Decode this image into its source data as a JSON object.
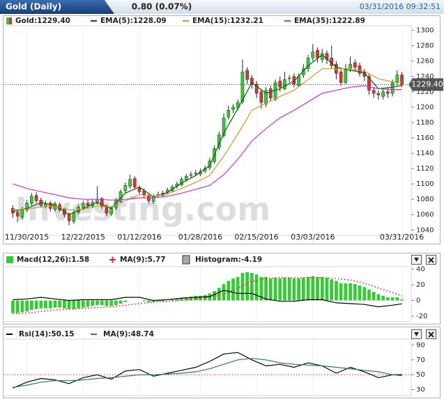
{
  "header": {
    "title": "Gold (Daily)",
    "change": "0.80 (0.07%)",
    "timestamp": "03/31/2016 09:32:51"
  },
  "chart_data": [
    {
      "type": "candlestick",
      "name": "Gold:1229.40",
      "watermark": "Investing.com",
      "grid": true,
      "up_color": "#33cc33",
      "down_color": "#dd3333",
      "xlim": [
        -2,
        85
      ],
      "ylim": [
        1033,
        1306
      ],
      "xticks": [
        {
          "value": 3,
          "label": "11/30/2015"
        },
        {
          "value": 15,
          "label": "12/22/2015"
        },
        {
          "value": 27,
          "label": "01/12/2016"
        },
        {
          "value": 40,
          "label": "01/28/2016"
        },
        {
          "value": 52,
          "label": "02/15/2016"
        },
        {
          "value": 64,
          "label": "03/03/2016"
        },
        {
          "value": 83,
          "label": "03/31/2016"
        }
      ],
      "yticks": [
        1040,
        1060,
        1080,
        1100,
        1120,
        1140,
        1160,
        1180,
        1200,
        1220,
        1240,
        1260,
        1280,
        1300
      ],
      "last_price": {
        "value": 1229.4,
        "label": "1229.40"
      },
      "open": [
        1068,
        1063,
        1057,
        1066,
        1075,
        1085,
        1079,
        1071,
        1075,
        1067,
        1073,
        1067,
        1061,
        1051,
        1063,
        1069,
        1075,
        1071,
        1075,
        1081,
        1071,
        1061,
        1069,
        1077,
        1091,
        1097,
        1107,
        1095,
        1091,
        1085,
        1077,
        1085,
        1085,
        1089,
        1091,
        1097,
        1099,
        1105,
        1111,
        1113,
        1113,
        1117,
        1121,
        1129,
        1147,
        1163,
        1187,
        1197,
        1199,
        1207,
        1248,
        1238,
        1230,
        1220,
        1204,
        1224,
        1210,
        1234,
        1224,
        1238,
        1240,
        1228,
        1242,
        1250,
        1264,
        1274,
        1262,
        1270,
        1264,
        1256,
        1246,
        1232,
        1250,
        1258,
        1254,
        1246,
        1240,
        1222,
        1218,
        1214,
        1220,
        1218,
        1232,
        1242
      ],
      "high": [
        1072,
        1066,
        1070,
        1079,
        1088,
        1089,
        1082,
        1078,
        1078,
        1077,
        1076,
        1069,
        1063,
        1065,
        1073,
        1078,
        1079,
        1080,
        1097,
        1083,
        1073,
        1071,
        1081,
        1093,
        1102,
        1112,
        1110,
        1098,
        1094,
        1088,
        1087,
        1090,
        1091,
        1095,
        1099,
        1103,
        1109,
        1113,
        1116,
        1118,
        1120,
        1124,
        1134,
        1150,
        1168,
        1192,
        1202,
        1204,
        1210,
        1262,
        1252,
        1242,
        1234,
        1224,
        1226,
        1228,
        1236,
        1240,
        1246,
        1242,
        1244,
        1244,
        1256,
        1268,
        1282,
        1278,
        1276,
        1274,
        1280,
        1260,
        1250,
        1256,
        1266,
        1262,
        1258,
        1250,
        1244,
        1226,
        1222,
        1224,
        1226,
        1236,
        1248,
        1246
      ],
      "low": [
        1056,
        1050,
        1054,
        1063,
        1072,
        1075,
        1069,
        1068,
        1064,
        1064,
        1063,
        1056,
        1046,
        1048,
        1060,
        1066,
        1069,
        1068,
        1073,
        1067,
        1058,
        1058,
        1066,
        1075,
        1088,
        1094,
        1093,
        1086,
        1082,
        1074,
        1074,
        1082,
        1083,
        1086,
        1089,
        1094,
        1097,
        1103,
        1108,
        1110,
        1110,
        1114,
        1118,
        1126,
        1144,
        1160,
        1184,
        1192,
        1196,
        1204,
        1230,
        1224,
        1212,
        1198,
        1200,
        1208,
        1208,
        1220,
        1222,
        1232,
        1226,
        1226,
        1238,
        1246,
        1260,
        1258,
        1258,
        1256,
        1250,
        1236,
        1228,
        1230,
        1246,
        1246,
        1240,
        1234,
        1216,
        1212,
        1210,
        1210,
        1212,
        1214,
        1228,
        1226
      ],
      "close": [
        1062,
        1058,
        1066,
        1075,
        1084,
        1078,
        1072,
        1074,
        1068,
        1074,
        1066,
        1060,
        1052,
        1062,
        1070,
        1074,
        1072,
        1076,
        1080,
        1070,
        1062,
        1068,
        1078,
        1090,
        1098,
        1106,
        1096,
        1090,
        1086,
        1078,
        1084,
        1086,
        1088,
        1092,
        1096,
        1100,
        1106,
        1110,
        1112,
        1114,
        1116,
        1120,
        1130,
        1146,
        1164,
        1186,
        1196,
        1200,
        1206,
        1246,
        1236,
        1230,
        1218,
        1206,
        1222,
        1212,
        1232,
        1226,
        1236,
        1238,
        1230,
        1240,
        1250,
        1264,
        1272,
        1264,
        1270,
        1262,
        1254,
        1244,
        1232,
        1250,
        1256,
        1252,
        1244,
        1240,
        1222,
        1218,
        1216,
        1220,
        1218,
        1232,
        1242,
        1229.4
      ],
      "series": [
        {
          "name": "EMA(5):1228.09",
          "color": "#006600",
          "x": [
            0,
            3,
            6,
            9,
            12,
            15,
            18,
            21,
            24,
            27,
            30,
            33,
            36,
            39,
            42,
            45,
            48,
            51,
            54,
            57,
            60,
            63,
            66,
            69,
            72,
            75,
            78,
            81,
            83
          ],
          "values": [
            1064,
            1068,
            1076,
            1072,
            1060,
            1068,
            1076,
            1068,
            1088,
            1096,
            1083,
            1089,
            1101,
            1111,
            1124,
            1166,
            1198,
            1232,
            1218,
            1224,
            1234,
            1254,
            1268,
            1252,
            1248,
            1245,
            1224,
            1226,
            1228.09
          ]
        },
        {
          "name": "EMA(15):1232.21",
          "color": "#cc9933",
          "x": [
            0,
            3,
            6,
            9,
            12,
            15,
            18,
            21,
            24,
            27,
            30,
            33,
            36,
            39,
            42,
            45,
            48,
            51,
            54,
            57,
            60,
            63,
            66,
            69,
            72,
            75,
            78,
            81,
            83
          ],
          "values": [
            1066,
            1067,
            1070,
            1071,
            1066,
            1067,
            1071,
            1070,
            1078,
            1086,
            1084,
            1087,
            1094,
            1102,
            1111,
            1136,
            1165,
            1196,
            1205,
            1214,
            1222,
            1236,
            1250,
            1250,
            1250,
            1247,
            1237,
            1233,
            1232.21
          ]
        },
        {
          "name": "EMA(35):1222.89",
          "color": "#cc33cc",
          "x": [
            0,
            3,
            6,
            9,
            12,
            15,
            18,
            21,
            24,
            27,
            30,
            33,
            36,
            39,
            42,
            45,
            48,
            51,
            54,
            57,
            60,
            63,
            66,
            69,
            72,
            75,
            78,
            81,
            83
          ],
          "values": [
            1100,
            1094,
            1090,
            1086,
            1082,
            1080,
            1080,
            1079,
            1080,
            1082,
            1082,
            1084,
            1088,
            1093,
            1098,
            1112,
            1132,
            1156,
            1172,
            1186,
            1196,
            1207,
            1218,
            1222,
            1226,
            1228,
            1224,
            1223,
            1222.89
          ]
        }
      ]
    },
    {
      "type": "macd",
      "xlim": [
        -2,
        85
      ],
      "ylim": [
        -27,
        43
      ],
      "yticks": [
        40,
        20,
        0,
        -20
      ],
      "bars": {
        "name": "Macd(12,26):1.58",
        "color": "#33cc33",
        "values": [
          -16,
          -16,
          -15,
          -14,
          -12,
          -11,
          -10,
          -10,
          -10,
          -9,
          -9,
          -10,
          -11,
          -11,
          -10,
          -9,
          -8,
          -7,
          -6,
          -6,
          -7,
          -7,
          -6,
          -4,
          -2,
          0,
          0,
          0,
          -1,
          -2,
          -2,
          -1,
          -1,
          0,
          1,
          2,
          3,
          4,
          5,
          6,
          6,
          7,
          9,
          12,
          16,
          21,
          25,
          28,
          30,
          35,
          36,
          35,
          33,
          30,
          30,
          28,
          29,
          28,
          29,
          29,
          28,
          28,
          29,
          30,
          31,
          30,
          30,
          29,
          27,
          25,
          22,
          22,
          22,
          21,
          19,
          17,
          14,
          11,
          8,
          6,
          4,
          4,
          4,
          1.58
        ]
      },
      "series": [
        {
          "name": "MA(9):5.77",
          "color": "#ee2222",
          "x": [
            0,
            3,
            6,
            9,
            12,
            15,
            18,
            21,
            24,
            27,
            30,
            33,
            36,
            39,
            42,
            45,
            48,
            51,
            54,
            57,
            60,
            63,
            66,
            69,
            72,
            75,
            78,
            81,
            83
          ],
          "values": [
            -17,
            -16,
            -14,
            -12,
            -11,
            -10,
            -9,
            -8,
            -6,
            -4,
            -2,
            -1,
            0,
            2,
            4,
            8,
            16,
            24,
            28,
            29,
            29,
            29,
            29,
            28,
            26,
            22,
            16,
            10,
            5.77
          ]
        },
        {
          "name": "Histogram:-4.19",
          "color": "#000000",
          "x": [
            0,
            3,
            6,
            9,
            12,
            15,
            18,
            21,
            24,
            27,
            30,
            33,
            36,
            39,
            42,
            45,
            48,
            51,
            54,
            57,
            60,
            63,
            66,
            69,
            72,
            75,
            78,
            81,
            83
          ],
          "values": [
            1,
            2,
            4,
            2,
            0,
            1,
            1,
            1,
            4,
            4,
            0,
            1,
            3,
            4,
            5,
            13,
            9,
            9,
            2,
            -1,
            -1,
            1,
            1,
            -3,
            -4,
            -5,
            -8,
            -6,
            -4.19
          ]
        }
      ]
    },
    {
      "type": "rsi",
      "xlim": [
        -2,
        85
      ],
      "ylim": [
        22,
        98
      ],
      "yticks": [
        90,
        70,
        50,
        30
      ],
      "reference": 50,
      "reference_color": "#ee2222",
      "series": [
        {
          "name": "Rsi(14):50.15",
          "color": "#000000",
          "x": [
            0,
            3,
            6,
            9,
            12,
            15,
            18,
            21,
            24,
            27,
            30,
            33,
            36,
            39,
            42,
            45,
            48,
            51,
            54,
            57,
            60,
            63,
            66,
            69,
            72,
            75,
            78,
            81,
            83
          ],
          "values": [
            32,
            40,
            45,
            43,
            38,
            46,
            50,
            44,
            55,
            57,
            48,
            52,
            56,
            60,
            68,
            78,
            80,
            70,
            62,
            64,
            60,
            66,
            62,
            52,
            60,
            54,
            46,
            50,
            50.15
          ]
        },
        {
          "name": "MA(9):48.74",
          "color": "#2e7d4f",
          "x": [
            0,
            3,
            6,
            9,
            12,
            15,
            18,
            21,
            24,
            27,
            30,
            33,
            36,
            39,
            42,
            45,
            48,
            51,
            54,
            57,
            60,
            63,
            66,
            69,
            72,
            75,
            78,
            81,
            83
          ],
          "values": [
            33,
            36,
            40,
            42,
            42,
            43,
            45,
            46,
            48,
            50,
            50,
            51,
            52,
            54,
            58,
            64,
            70,
            72,
            70,
            66,
            64,
            63,
            62,
            60,
            58,
            56,
            54,
            50,
            48.74
          ]
        }
      ]
    }
  ]
}
